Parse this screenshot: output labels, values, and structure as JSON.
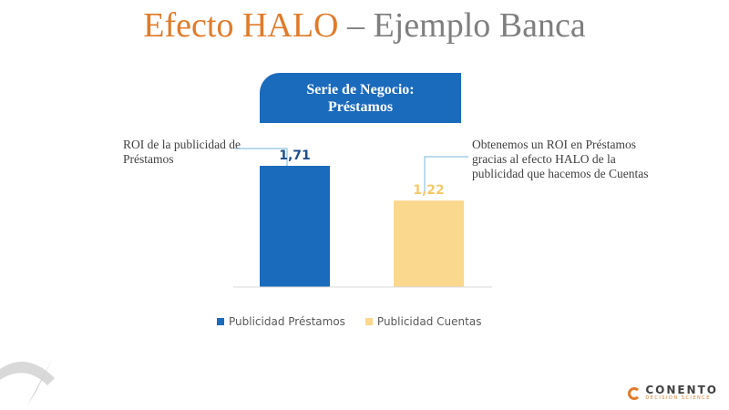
{
  "title": {
    "main": "Efecto HALO",
    "rest": " – Ejemplo Banca"
  },
  "section_label": {
    "line1": "Serie de Negocio:",
    "line2": "Préstamos"
  },
  "callouts": {
    "left": "ROI de la publicidad de Préstamos",
    "right": "Obtenemos un ROI en Préstamos gracias al efecto HALO de la publicidad que hacemos de Cuentas"
  },
  "logo": {
    "name": "CONENTO",
    "tagline": "DECISION SCIENCE"
  },
  "colors": {
    "title_accent": "#e07b2a",
    "bar_prestamos": "#1b6bbd",
    "bar_cuentas": "#fad88e",
    "label_prestamos": "#1f4e8c",
    "label_cuentas": "#f5c96a"
  },
  "chart_data": {
    "type": "bar",
    "categories": [
      ""
    ],
    "series": [
      {
        "name": "Publicidad Préstamos",
        "values": [
          1.71
        ],
        "label": "1,71"
      },
      {
        "name": "Publicidad Cuentas",
        "values": [
          1.22
        ],
        "label": "1,22"
      }
    ],
    "title": "",
    "xlabel": "",
    "ylabel": "",
    "ylim": [
      0,
      2.4
    ],
    "grid": false,
    "legend": "bottom"
  }
}
